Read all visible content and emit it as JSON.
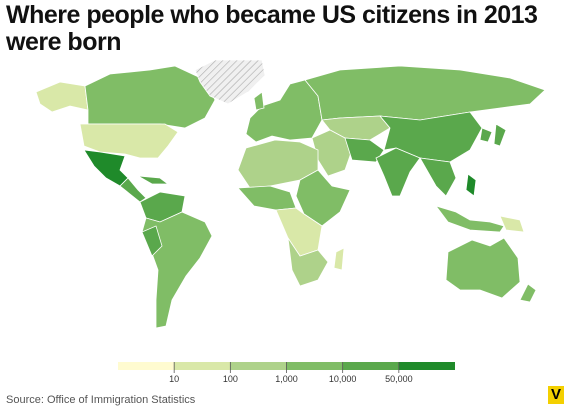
{
  "title": "Where people who became US citizens in 2013 were born",
  "legend": {
    "colors": [
      "#fffbd0",
      "#d9e8a8",
      "#aed28a",
      "#80bd66",
      "#5aa84c",
      "#1f8a2a"
    ],
    "ticks": [
      10,
      100,
      {
        "value": 1000,
        "label": "1,000"
      },
      {
        "value": 10000,
        "label": "10,000"
      },
      {
        "value": 50000,
        "label": "50,000"
      }
    ]
  },
  "source": "Source: Office of Immigration Statistics",
  "logo": "V"
}
